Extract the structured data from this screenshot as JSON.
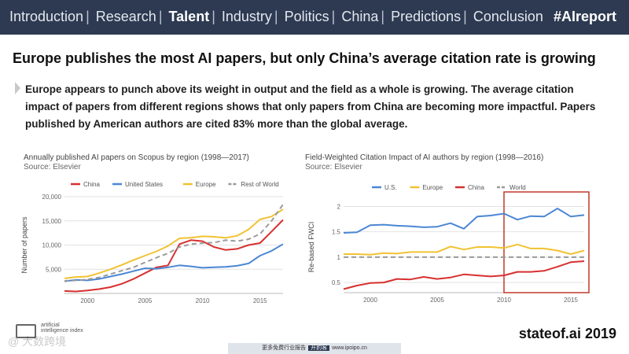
{
  "nav": {
    "items": [
      "Introduction",
      "Research",
      "Talent",
      "Industry",
      "Politics",
      "China",
      "Predictions",
      "Conclusion"
    ],
    "active": "Talent",
    "separator": "|",
    "hashtag": "#AIreport"
  },
  "headline": "Europe publishes the most AI papers, but only China’s average citation rate is growing",
  "body_text": "Europe appears to punch above its weight in output and the field as a whole is growing. The average citation impact of papers from different regions shows that only papers from China are becoming more impactful. Papers published by American authors are cited 83% more than the global average.",
  "colors": {
    "china": "#d7302f",
    "us": "#4b86d4",
    "europe": "#f1c232",
    "rest_of_world": "#9a9a9a",
    "highlight_box": "#c0392b",
    "arrow_buttons": "#2e8fd8"
  },
  "chart_data": [
    {
      "type": "line",
      "title": "Annually published AI papers on Scopus by region (1998—2017)",
      "source": "Source: Elsevier",
      "xlabel": "",
      "ylabel": "Number of papers",
      "xlim": [
        1998,
        2017
      ],
      "ylim": [
        0,
        20000
      ],
      "x_ticks": [
        2000,
        2005,
        2010,
        2015
      ],
      "y_ticks": [
        5000,
        10000,
        15000,
        20000
      ],
      "y_tick_labels": [
        "5,000",
        "10,000",
        "15,000",
        "20,000"
      ],
      "x": [
        1998,
        1999,
        2000,
        2001,
        2002,
        2003,
        2004,
        2005,
        2006,
        2007,
        2008,
        2009,
        2010,
        2011,
        2012,
        2013,
        2014,
        2015,
        2016,
        2017
      ],
      "series": [
        {
          "name": "China",
          "key": "china",
          "dash": false,
          "values": [
            500,
            400,
            600,
            900,
            1300,
            2000,
            3000,
            4200,
            5400,
            5800,
            10200,
            11000,
            10800,
            9600,
            9000,
            9200,
            10000,
            10400,
            12800,
            15200
          ]
        },
        {
          "name": "United States",
          "key": "us",
          "dash": false,
          "values": [
            2500,
            2800,
            2700,
            3000,
            3500,
            4000,
            4600,
            5200,
            5100,
            5400,
            5800,
            5600,
            5300,
            5400,
            5500,
            5700,
            6200,
            7800,
            8800,
            10200
          ]
        },
        {
          "name": "Europe",
          "key": "europe",
          "dash": false,
          "values": [
            3100,
            3400,
            3500,
            4200,
            5000,
            5900,
            6900,
            7800,
            8700,
            9800,
            11400,
            11500,
            11800,
            11700,
            11500,
            11900,
            13200,
            15300,
            15900,
            17400
          ]
        },
        {
          "name": "Rest of World",
          "key": "rest_of_world",
          "dash": true,
          "values": [
            2600,
            2700,
            2900,
            3300,
            4000,
            4700,
            5400,
            6400,
            7400,
            8300,
            9600,
            10200,
            10400,
            10500,
            11000,
            10800,
            11200,
            12300,
            15000,
            18400
          ]
        }
      ]
    },
    {
      "type": "line",
      "title": "Field-Weighted Citation Impact of AI authors by region (1998—2016)",
      "source": "Source: Elsevier",
      "xlabel": "",
      "ylabel": "Re-based FWCI",
      "xlim": [
        1998,
        2016
      ],
      "ylim": [
        0.3,
        2.1
      ],
      "x_ticks": [
        2000,
        2005,
        2010,
        2015
      ],
      "y_ticks": [
        0.5,
        1,
        1.5,
        2
      ],
      "y_tick_labels": [
        "0.5",
        "1",
        "1.5",
        "2"
      ],
      "x": [
        1998,
        1999,
        2000,
        2001,
        2002,
        2003,
        2004,
        2005,
        2006,
        2007,
        2008,
        2009,
        2010,
        2011,
        2012,
        2013,
        2014,
        2015,
        2016
      ],
      "series": [
        {
          "name": "U.S.",
          "key": "us",
          "dash": false,
          "values": [
            1.48,
            1.49,
            1.63,
            1.64,
            1.62,
            1.61,
            1.59,
            1.6,
            1.67,
            1.56,
            1.8,
            1.82,
            1.86,
            1.74,
            1.81,
            1.8,
            1.96,
            1.8,
            1.83
          ]
        },
        {
          "name": "Europe",
          "key": "europe",
          "dash": false,
          "values": [
            1.06,
            1.06,
            1.05,
            1.08,
            1.07,
            1.1,
            1.1,
            1.1,
            1.21,
            1.15,
            1.2,
            1.2,
            1.18,
            1.25,
            1.17,
            1.17,
            1.13,
            1.06,
            1.13
          ]
        },
        {
          "name": "China",
          "key": "china",
          "dash": false,
          "values": [
            0.37,
            0.44,
            0.49,
            0.5,
            0.57,
            0.56,
            0.61,
            0.57,
            0.6,
            0.66,
            0.64,
            0.62,
            0.64,
            0.71,
            0.71,
            0.73,
            0.81,
            0.9,
            0.92
          ]
        },
        {
          "name": "World",
          "key": "rest_of_world",
          "dash": true,
          "values": [
            1,
            1,
            1,
            1,
            1,
            1,
            1,
            1,
            1,
            1,
            1,
            1,
            1,
            1,
            1,
            1,
            1,
            1,
            1
          ]
        }
      ],
      "highlight_range": [
        2010,
        2016
      ]
    }
  ],
  "footer": {
    "logo_text": "artificial intelligence index",
    "watermark": "@ 大数跨境",
    "bar_left": "更多免费行业报告",
    "bar_badge": "开豹客",
    "bar_right": "www.ipoipo.cn",
    "brand": "stateof.ai 2019"
  }
}
